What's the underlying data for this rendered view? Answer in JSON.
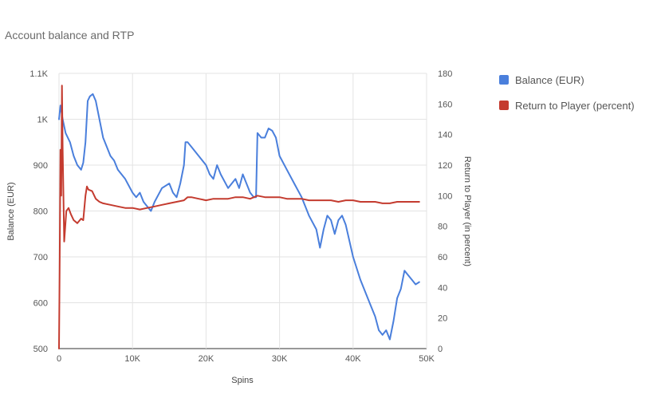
{
  "chart_data": {
    "type": "line",
    "title": "Account balance and RTP",
    "xlabel": "Spins",
    "ylabel_left": "Balance (EUR)",
    "ylabel_right": "Return to Player (in percent)",
    "xlim": [
      0,
      50000
    ],
    "ylim_left": [
      500,
      1100
    ],
    "ylim_right": [
      0,
      180
    ],
    "x_ticks": [
      "0",
      "10K",
      "20K",
      "30K",
      "40K",
      "50K"
    ],
    "y_left_ticks": [
      "500",
      "600",
      "700",
      "800",
      "900",
      "1K",
      "1.1K"
    ],
    "y_right_ticks": [
      "0",
      "20",
      "40",
      "60",
      "80",
      "100",
      "120",
      "140",
      "160",
      "180"
    ],
    "grid": true,
    "legend_position": "right",
    "series": [
      {
        "name": "Balance (EUR)",
        "axis": "left",
        "color": "#4a7fdc",
        "x": [
          0,
          200,
          500,
          900,
          1500,
          2000,
          2500,
          3000,
          3300,
          3600,
          3900,
          4200,
          4600,
          5000,
          5500,
          6000,
          6500,
          7000,
          7500,
          8000,
          9000,
          10000,
          10500,
          11000,
          11500,
          12000,
          12500,
          13000,
          14000,
          15000,
          15500,
          16000,
          16500,
          17000,
          17200,
          17500,
          18000,
          19000,
          20000,
          20500,
          21000,
          21500,
          22000,
          23000,
          23500,
          24000,
          24500,
          25000,
          25500,
          26000,
          26500,
          26800,
          27000,
          27500,
          28000,
          28500,
          29000,
          29500,
          30000,
          31000,
          32000,
          33000,
          34000,
          35000,
          35500,
          36000,
          36500,
          37000,
          37500,
          38000,
          38500,
          39000,
          40000,
          41000,
          42000,
          43000,
          43500,
          44000,
          44500,
          45000,
          45500,
          46000,
          46500,
          47000,
          47500,
          48000,
          48500,
          49000
        ],
        "values": [
          1000,
          1030,
          1000,
          970,
          950,
          920,
          900,
          890,
          905,
          950,
          1040,
          1050,
          1055,
          1040,
          1000,
          960,
          940,
          920,
          910,
          890,
          870,
          840,
          830,
          840,
          820,
          810,
          800,
          820,
          850,
          860,
          840,
          830,
          860,
          900,
          950,
          950,
          940,
          920,
          900,
          880,
          870,
          900,
          880,
          850,
          860,
          870,
          850,
          880,
          860,
          840,
          830,
          830,
          970,
          960,
          960,
          980,
          975,
          960,
          920,
          890,
          860,
          830,
          790,
          760,
          720,
          760,
          790,
          780,
          750,
          780,
          790,
          770,
          700,
          650,
          610,
          570,
          540,
          530,
          540,
          520,
          560,
          610,
          630,
          670,
          660,
          650,
          640,
          645
        ]
      },
      {
        "name": "Return to Player (percent)",
        "axis": "right",
        "color": "#c43b2f",
        "x": [
          0,
          100,
          200,
          300,
          400,
          500,
          700,
          1000,
          1300,
          1600,
          2000,
          2500,
          3000,
          3300,
          3600,
          3800,
          4000,
          4500,
          5000,
          5500,
          6000,
          7000,
          8000,
          9000,
          10000,
          11000,
          12000,
          13000,
          14000,
          15000,
          16000,
          17000,
          17500,
          18000,
          19000,
          20000,
          21000,
          22000,
          23000,
          24000,
          25000,
          26000,
          27000,
          28000,
          29000,
          30000,
          31000,
          32000,
          33000,
          34000,
          35000,
          36000,
          37000,
          38000,
          39000,
          40000,
          41000,
          42000,
          43000,
          44000,
          45000,
          46000,
          47000,
          48000,
          49000
        ],
        "values": [
          0,
          60,
          130,
          100,
          172,
          130,
          70,
          90,
          92,
          88,
          84,
          82,
          85,
          84,
          100,
          106,
          104,
          103,
          98,
          96,
          95,
          94,
          93,
          92,
          92,
          91,
          92,
          93,
          94,
          95,
          96,
          97,
          99,
          99,
          98,
          97,
          98,
          98,
          98,
          99,
          99,
          98,
          100,
          99,
          99,
          99,
          98,
          98,
          98,
          97,
          97,
          97,
          97,
          96,
          97,
          97,
          96,
          96,
          96,
          95,
          95,
          96,
          96,
          96,
          96
        ]
      }
    ]
  }
}
